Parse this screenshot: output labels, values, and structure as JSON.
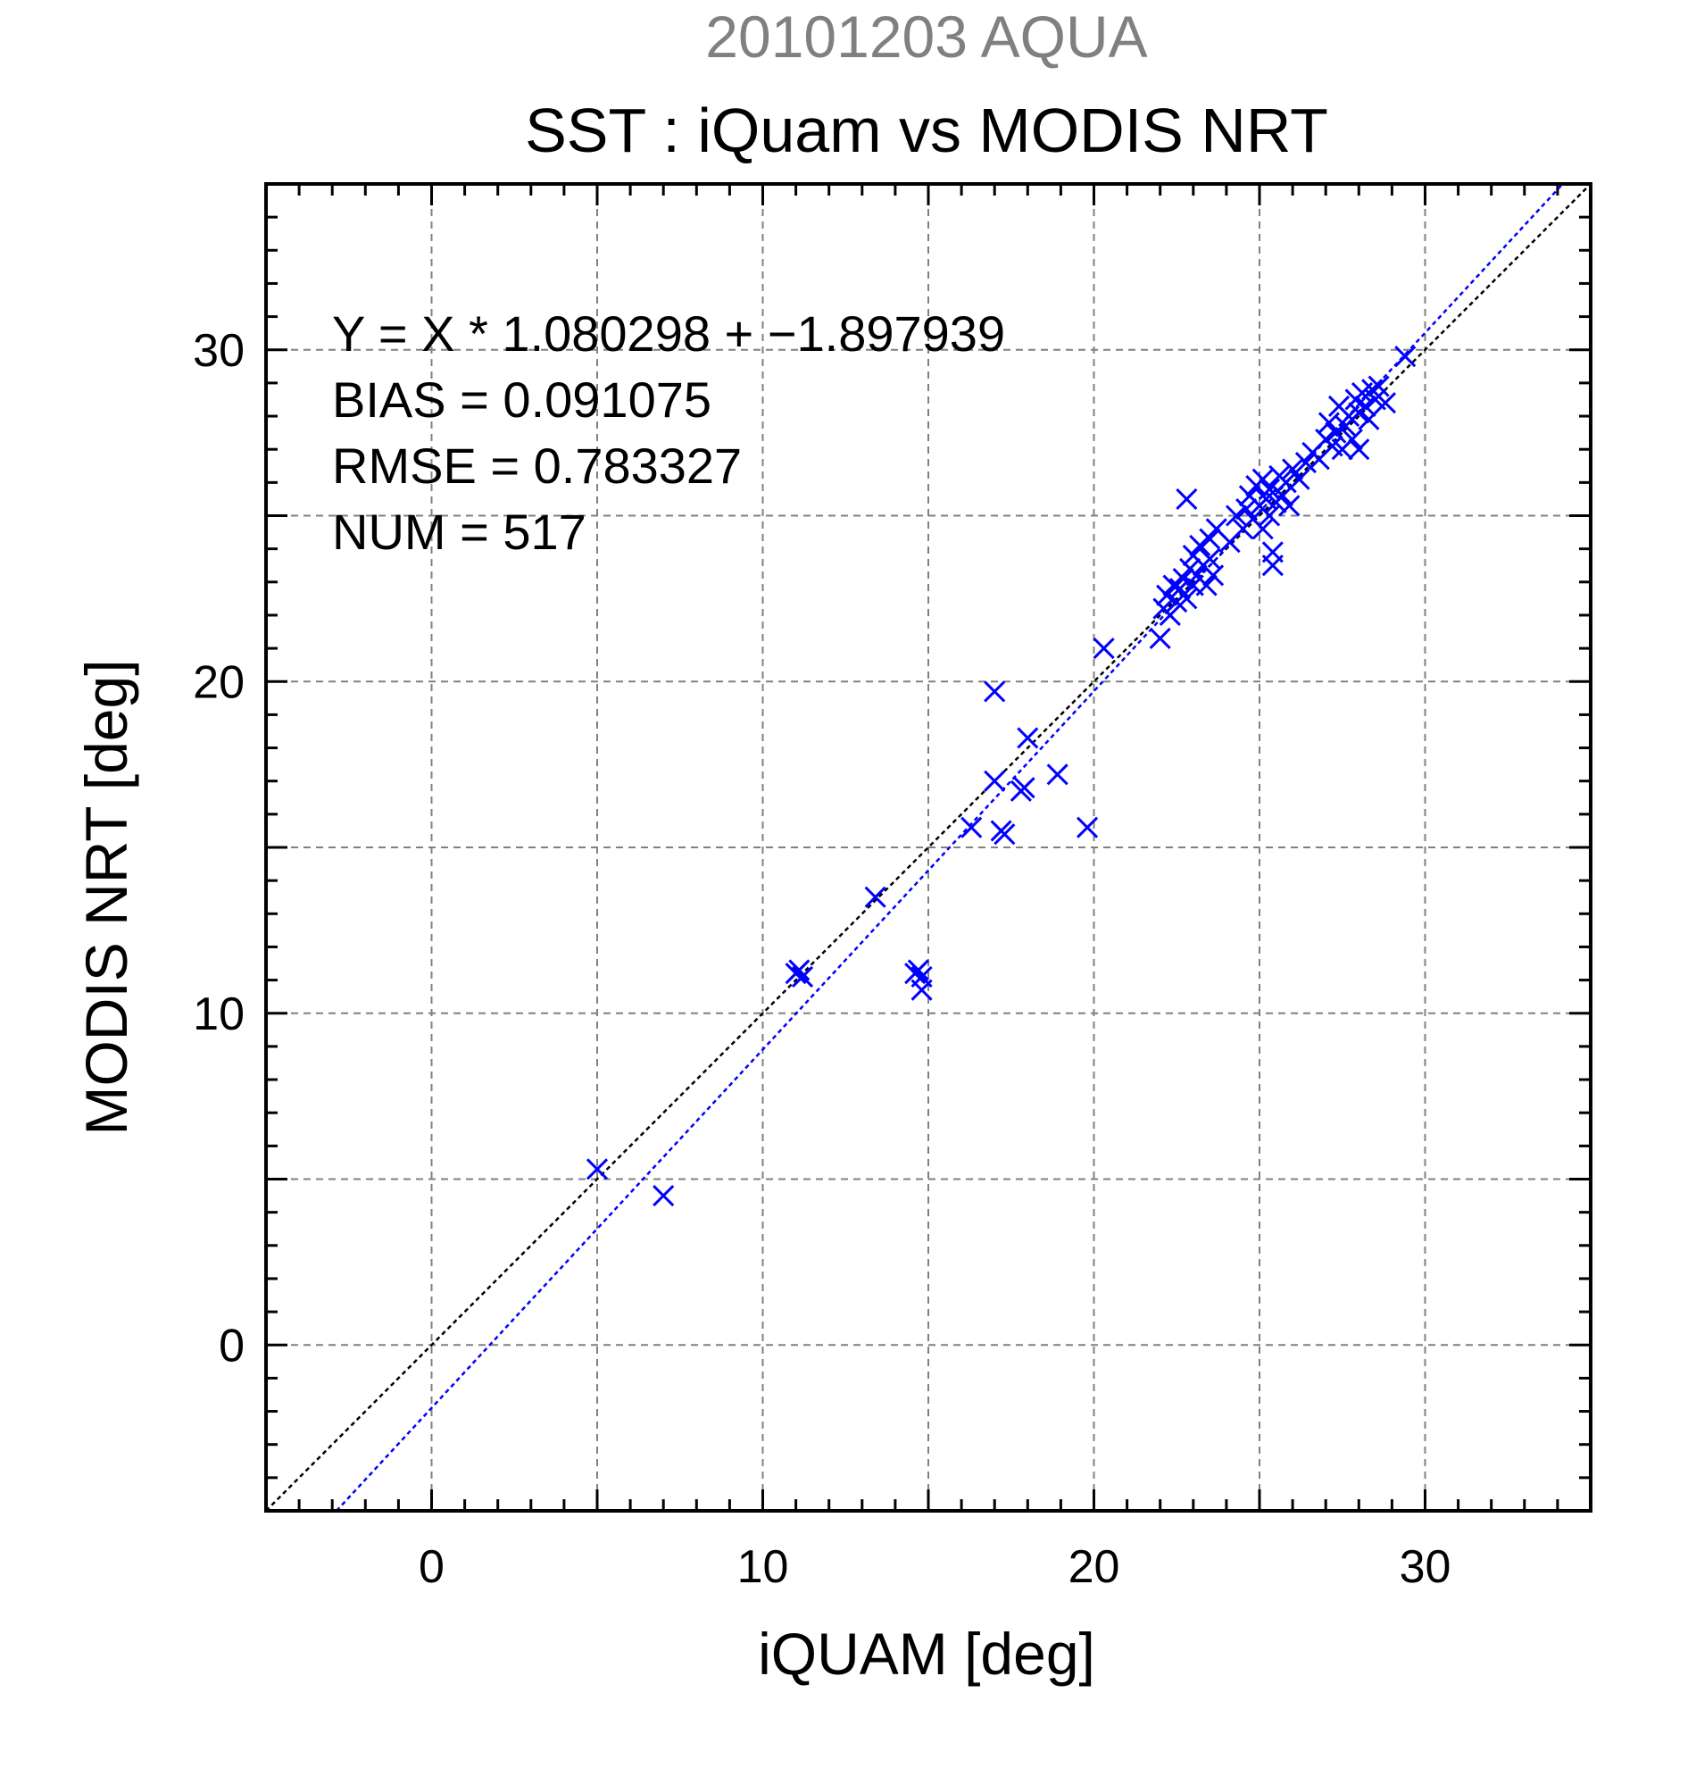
{
  "chart_data": {
    "type": "scatter",
    "subtitle": "20101203 AQUA",
    "title": "SST : iQuam vs MODIS NRT",
    "xlabel": "iQUAM [deg]",
    "ylabel": "MODIS NRT [deg]",
    "xlim": [
      -5,
      35
    ],
    "ylim": [
      -5,
      35
    ],
    "xticks": [
      0,
      10,
      20,
      30
    ],
    "yticks": [
      0,
      10,
      20,
      30
    ],
    "grid": true,
    "annotations": [
      "Y = X * 1.080298 + −1.897939",
      "BIAS = 0.091075",
      "RMSE = 0.783327",
      "NUM = 517"
    ],
    "colors": {
      "points": "#0000ff",
      "fit_line": "#0000ff",
      "identity_line": "#000000",
      "grid": "#808080"
    },
    "lines": [
      {
        "kind": "identity",
        "slope": 1,
        "intercept": 0
      },
      {
        "kind": "fit",
        "slope": 1.080298,
        "intercept": -1.897939
      }
    ],
    "series": [
      {
        "marker": "x",
        "points": [
          [
            5.0,
            5.3
          ],
          [
            7.0,
            4.5
          ],
          [
            11.0,
            11.2
          ],
          [
            11.1,
            11.3
          ],
          [
            11.2,
            11.1
          ],
          [
            13.4,
            13.5
          ],
          [
            14.6,
            11.2
          ],
          [
            14.7,
            11.3
          ],
          [
            14.8,
            11.1
          ],
          [
            14.8,
            10.7
          ],
          [
            16.3,
            15.6
          ],
          [
            17.0,
            19.7
          ],
          [
            17.0,
            17.0
          ],
          [
            17.2,
            15.5
          ],
          [
            17.3,
            15.4
          ],
          [
            17.8,
            16.7
          ],
          [
            17.9,
            16.8
          ],
          [
            18.0,
            18.3
          ],
          [
            18.9,
            17.2
          ],
          [
            19.8,
            15.6
          ],
          [
            20.3,
            21.0
          ],
          [
            22.0,
            21.3
          ],
          [
            22.1,
            22.2
          ],
          [
            22.2,
            22.6
          ],
          [
            22.3,
            22.0
          ],
          [
            22.4,
            22.9
          ],
          [
            22.5,
            22.4
          ],
          [
            22.6,
            22.8
          ],
          [
            22.7,
            23.1
          ],
          [
            22.8,
            22.5
          ],
          [
            22.8,
            25.5
          ],
          [
            22.9,
            23.4
          ],
          [
            23.0,
            22.9
          ],
          [
            23.0,
            23.8
          ],
          [
            23.1,
            23.2
          ],
          [
            23.2,
            24.1
          ],
          [
            23.3,
            23.5
          ],
          [
            23.4,
            22.9
          ],
          [
            23.5,
            23.7
          ],
          [
            23.5,
            24.3
          ],
          [
            23.6,
            23.2
          ],
          [
            23.7,
            24.6
          ],
          [
            24.1,
            24.2
          ],
          [
            24.3,
            25.0
          ],
          [
            24.5,
            24.6
          ],
          [
            24.6,
            25.2
          ],
          [
            24.7,
            25.6
          ],
          [
            24.8,
            24.9
          ],
          [
            24.9,
            25.9
          ],
          [
            25.0,
            25.3
          ],
          [
            25.1,
            24.6
          ],
          [
            25.1,
            26.1
          ],
          [
            25.2,
            25.5
          ],
          [
            25.3,
            25.0
          ],
          [
            25.3,
            25.8
          ],
          [
            25.4,
            23.5
          ],
          [
            25.4,
            23.9
          ],
          [
            25.5,
            25.4
          ],
          [
            25.6,
            26.2
          ],
          [
            25.7,
            25.6
          ],
          [
            25.8,
            26.0
          ],
          [
            25.9,
            25.3
          ],
          [
            26.0,
            26.4
          ],
          [
            26.2,
            26.1
          ],
          [
            26.4,
            26.6
          ],
          [
            26.6,
            26.9
          ],
          [
            26.8,
            26.7
          ],
          [
            27.0,
            27.3
          ],
          [
            27.1,
            27.8
          ],
          [
            27.2,
            27.1
          ],
          [
            27.3,
            27.5
          ],
          [
            27.4,
            28.3
          ],
          [
            27.5,
            27.0
          ],
          [
            27.6,
            27.7
          ],
          [
            27.7,
            28.0
          ],
          [
            27.8,
            27.3
          ],
          [
            27.9,
            28.5
          ],
          [
            28.0,
            28.1
          ],
          [
            28.0,
            27.0
          ],
          [
            28.1,
            28.7
          ],
          [
            28.2,
            28.3
          ],
          [
            28.3,
            27.9
          ],
          [
            28.4,
            28.8
          ],
          [
            28.5,
            28.5
          ],
          [
            28.6,
            28.9
          ],
          [
            28.8,
            28.4
          ],
          [
            29.4,
            29.8
          ]
        ]
      }
    ]
  }
}
